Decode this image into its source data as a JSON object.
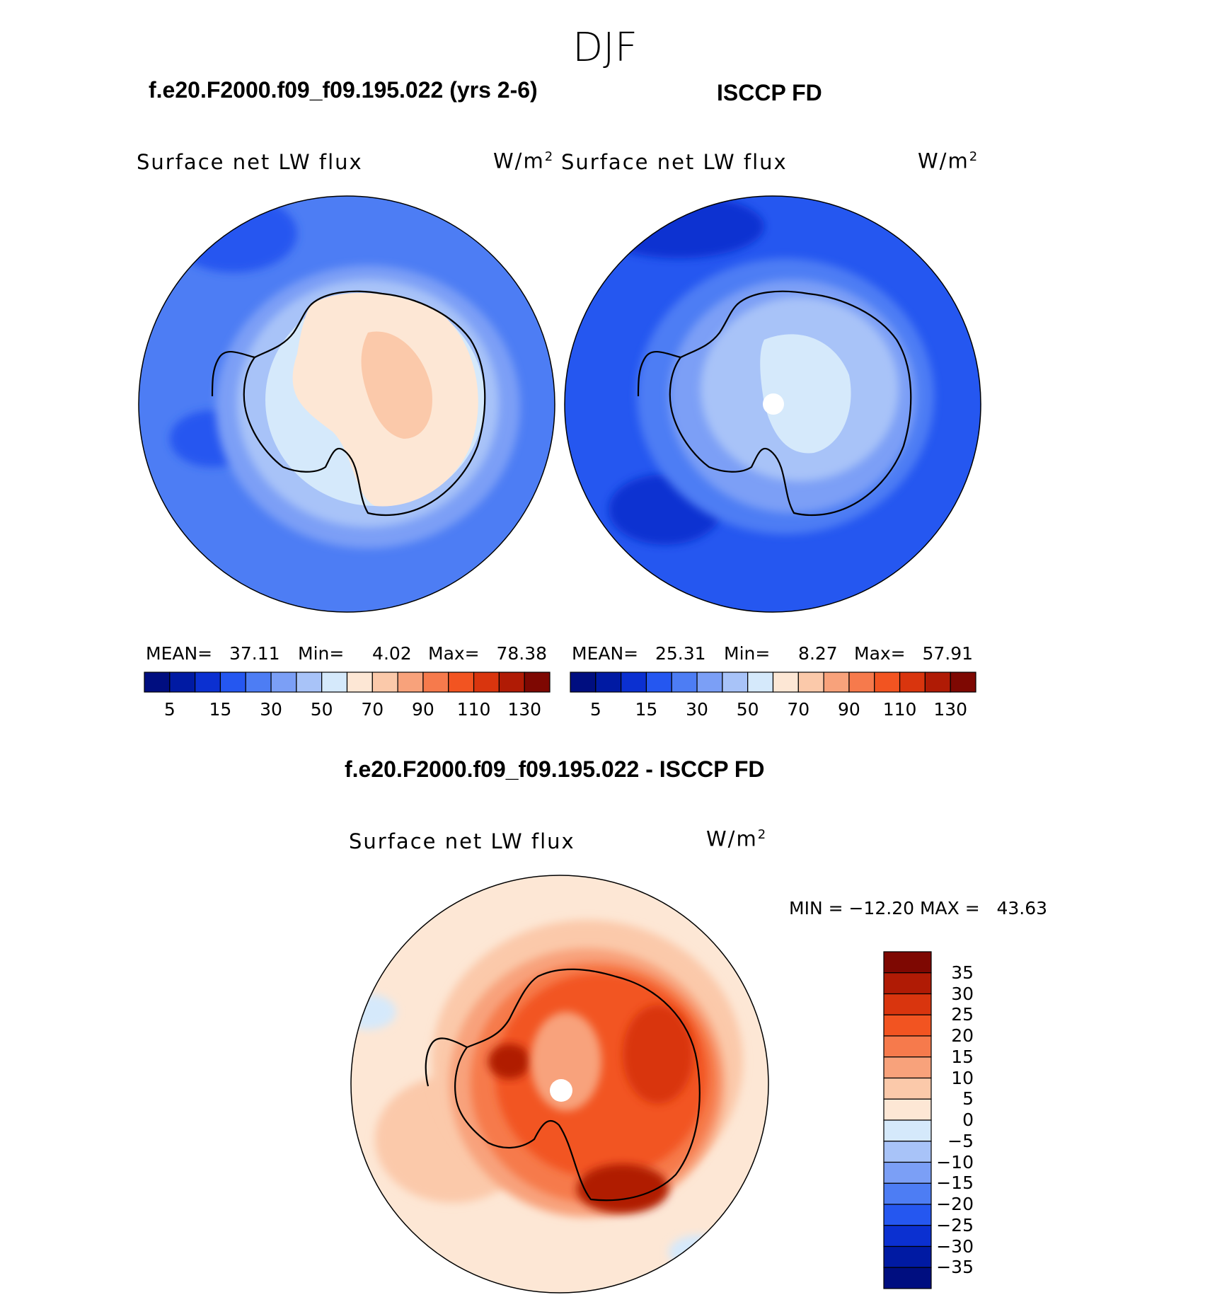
{
  "season": "DJF",
  "panels": {
    "model": {
      "title": "f.e20.F2000.f09_f09.195.022 (yrs 2-6)",
      "variable": "Surface net LW flux",
      "unit": "W/m",
      "unit_exp": "2",
      "mean_label": "MEAN=",
      "mean": "37.11",
      "min_label": "Min=",
      "min": "4.02",
      "max_label": "Max=",
      "max": "78.38"
    },
    "obs": {
      "title": "ISCCP FD",
      "variable": "Surface net LW flux",
      "unit": "W/m",
      "unit_exp": "2",
      "mean_label": "MEAN=",
      "mean": "25.31",
      "min_label": "Min=",
      "min": "8.27",
      "max_label": "Max=",
      "max": "57.91"
    },
    "diff": {
      "title": "f.e20.F2000.f09_f09.195.022 - ISCCP FD",
      "variable": "Surface net LW flux",
      "unit": "W/m",
      "unit_exp": "2",
      "minmax": "MIN = −12.20 MAX =   43.63"
    }
  },
  "colorbar_h": {
    "colors": [
      "#000e80",
      "#001aa3",
      "#0b30d1",
      "#2557f0",
      "#4d7df4",
      "#7b9ff6",
      "#a8c3f8",
      "#d5e9fb",
      "#fde7d5",
      "#fbc9aa",
      "#f8a27b",
      "#f67a4c",
      "#f25421",
      "#d9350e",
      "#b01b05",
      "#7e0802"
    ],
    "labels": [
      "5",
      "15",
      "30",
      "50",
      "70",
      "90",
      "110",
      "130"
    ]
  },
  "colorbar_v": {
    "colors": [
      "#7e0802",
      "#b01b05",
      "#d9350e",
      "#f25421",
      "#f67a4c",
      "#f8a27b",
      "#fbc9aa",
      "#fde7d5",
      "#d5e9fb",
      "#a8c3f8",
      "#7b9ff6",
      "#4d7df4",
      "#2557f0",
      "#0b30d1",
      "#001aa3",
      "#000e80"
    ],
    "labels": [
      "35",
      "30",
      "25",
      "20",
      "15",
      "10",
      "5",
      "0",
      "−5",
      "−10",
      "−15",
      "−20",
      "−25",
      "−30",
      "−35"
    ]
  }
}
